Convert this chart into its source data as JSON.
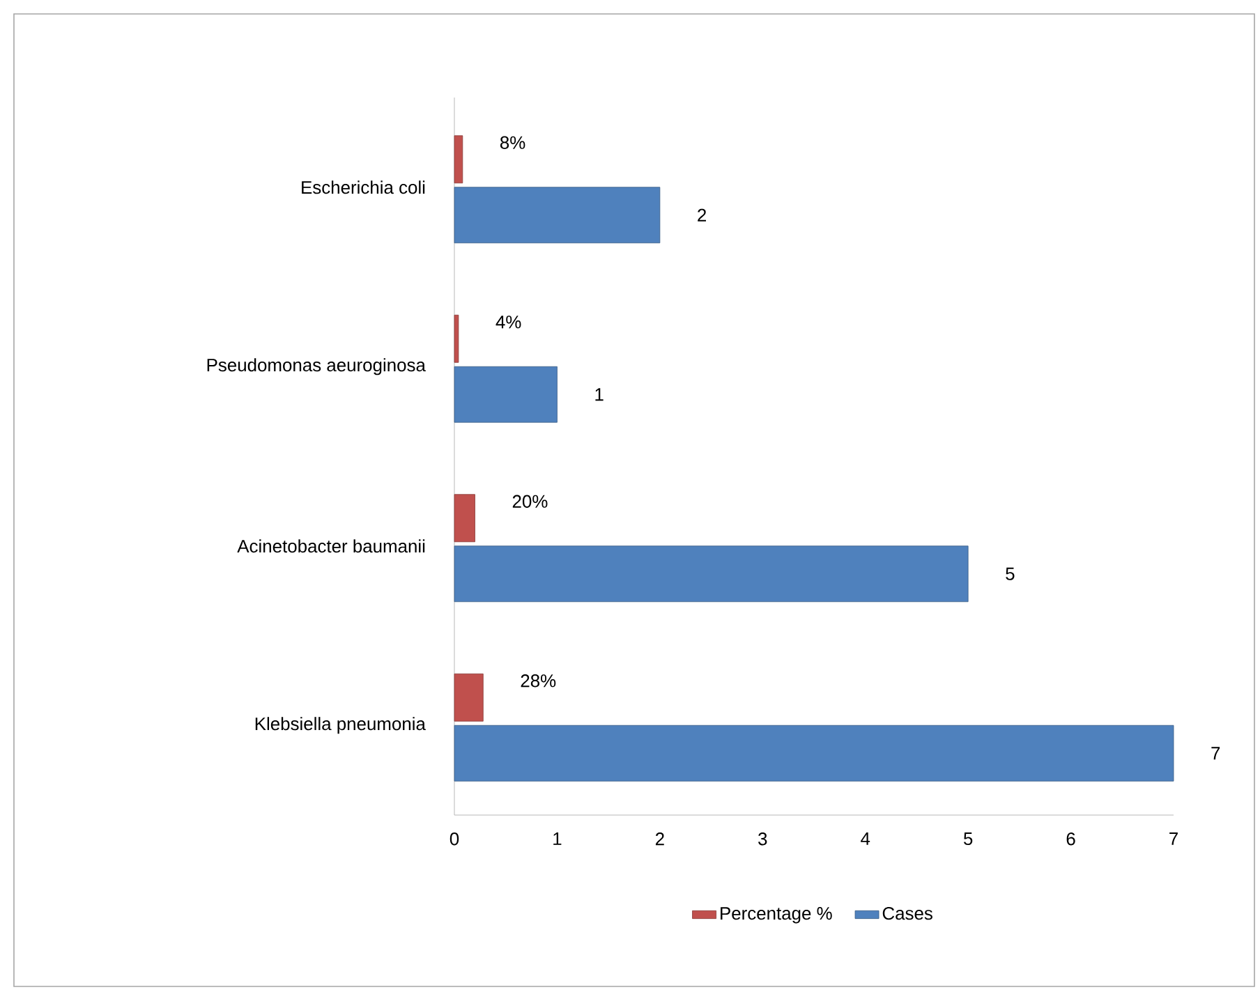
{
  "chart_data": {
    "type": "bar",
    "orientation": "horizontal",
    "categories": [
      "Escherichia coli",
      "Pseudomonas aeuroginosa",
      "Acinetobacter baumanii",
      "Klebsiella pneumonia"
    ],
    "series": [
      {
        "name": "Percentage %",
        "color": "#c0504d",
        "values": [
          0.08,
          0.04,
          0.2,
          0.28
        ],
        "value_labels": [
          "8%",
          "4%",
          "20%",
          "28%"
        ]
      },
      {
        "name": "Cases",
        "color": "#4f81bd",
        "values": [
          2,
          1,
          5,
          7
        ],
        "value_labels": [
          "2",
          "1",
          "5",
          "7"
        ]
      }
    ],
    "xlim": [
      0,
      7
    ],
    "xticks": [
      0,
      1,
      2,
      3,
      4,
      5,
      6,
      7
    ],
    "legend": "bottom"
  }
}
